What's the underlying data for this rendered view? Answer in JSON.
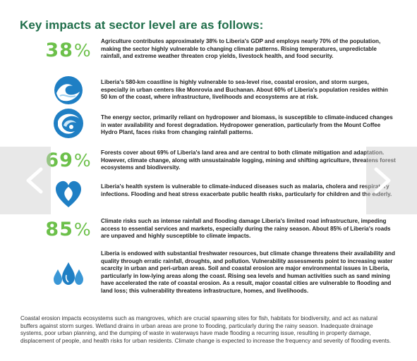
{
  "heading": "Key impacts at sector level are as follows:",
  "colors": {
    "heading": "#1f6e4a",
    "stat": "#6cc04a",
    "icon_blue": "#1f7fc4"
  },
  "items": [
    {
      "icon": "stat-38-percent",
      "stat_number": "38",
      "stat_unit": "%",
      "text": "Agriculture contributes approximately 38% to Liberia's GDP and employs nearly 70% of the population, making the sector highly vulnerable to changing climate patterns. Rising temperatures, unpredictable rainfall, and extreme weather threaten crop yields, livestock health, and food security."
    },
    {
      "icon": "wave-icon",
      "text": "Liberia's 580-km coastline is highly vulnerable to sea-level rise, coastal erosion, and storm surges, especially in urban centers like Monrovia and Buchanan. About 60% of Liberia's population resides within 50 km of the coast, where infrastructure, livelihoods and ecosystems are at risk."
    },
    {
      "icon": "hydro-swirl-icon",
      "text": "The energy sector, primarily reliant on hydropower and biomass, is susceptible to climate-induced changes in water availability and forest degradation. Hydropower generation, particularly from the Mount Coffee Hydro Plant, faces risks from changing rainfall patterns."
    },
    {
      "icon": "stat-69-percent",
      "stat_number": "69",
      "stat_unit": "%",
      "text": "Forests cover about 69% of Liberia's land area and are central to both climate mitigation and adaptation. However, climate change, along with unsustainable logging, mining and shifting agriculture, threatens forest ecosystems and biodiversity."
    },
    {
      "icon": "heart-drop-icon",
      "text": "Liberia's health system is vulnerable to climate-induced diseases such as malaria, cholera and respiratory infections. Flooding and heat stress exacerbate public health risks, particularly for children and the elderly."
    },
    {
      "icon": "stat-85-percent",
      "stat_number": "85",
      "stat_unit": "%",
      "text": "Climate risks such as intense rainfall and flooding damage Liberia's limited road infrastructure, impeding access to essential services and markets, especially during the rainy season. About 85% of Liberia's roads are unpaved and highly susceptible to climate impacts."
    },
    {
      "icon": "water-drops-icon",
      "text": "Liberia is endowed with substantial freshwater resources, but climate change threatens their availability and quality through erratic rainfall, droughts, and pollution. Vulnerability assessments point to increasing water scarcity in urban and peri-urban areas. Soil and coastal erosion are major environmental issues in Liberia, particularly in low-lying areas along the coast. Rising sea levels and human activities such as sand mining have accelerated the rate of coastal erosion. As a result, major coastal cities are vulnerable to flooding and land loss; this vulnerability threatens infrastructure, homes, and livelihoods."
    }
  ],
  "footer": "Coastal erosion impacts ecosystems such as mangroves, which are crucial spawning sites for fish, habitats for biodiversity, and act as natural buffers against storm surges. Wetland drains in urban areas are prone to flooding, particularly during the rainy season. Inadequate drainage systems, poor urban planning, and the dumping of waste in waterways have made flooding a recurring issue, resulting in property damage, displacement of people, and health risks for urban residents. Climate change is expected to increase the frequency and severity of flooding events.",
  "nav": {
    "prev_icon": "chevron-left-icon",
    "next_icon": "chevron-right-icon"
  }
}
